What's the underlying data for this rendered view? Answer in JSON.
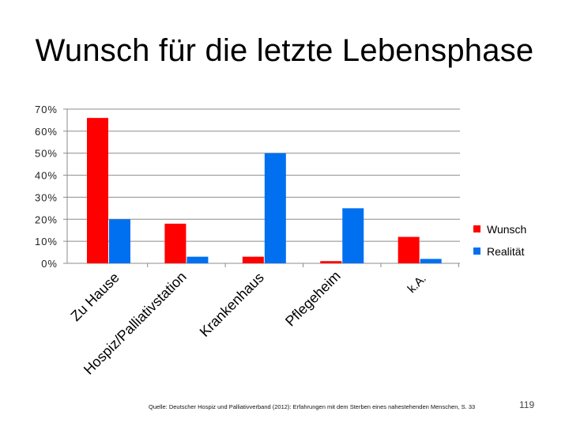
{
  "title": "Wunsch für die letzte Lebensphase",
  "source": "Quelle: Deutscher Hospiz und Palliativverband (2012): Erfahrungen mit dem Sterben eines nahestehenden Menschen, S. 33",
  "page_number": "119",
  "chart_data": {
    "type": "bar",
    "title": "Wunsch für die letzte Lebensphase",
    "xlabel": "",
    "ylabel": "",
    "ylim": [
      0,
      70
    ],
    "yticks": [
      "0%",
      "10%",
      "20%",
      "30%",
      "40%",
      "50%",
      "60%",
      "70%"
    ],
    "ytick_values": [
      0,
      10,
      20,
      30,
      40,
      50,
      60,
      70
    ],
    "grid": true,
    "legend_position": "right",
    "categories": [
      "Zu Hause",
      "Hospiz/Palliativstation",
      "Krankenhaus",
      "Pflegeheim",
      "k.A."
    ],
    "series": [
      {
        "name": "Wunsch",
        "color": "#ff0000",
        "values": [
          66,
          18,
          3,
          1,
          12
        ]
      },
      {
        "name": "Realität",
        "color": "#0070f0",
        "values": [
          20,
          3,
          50,
          25,
          2
        ]
      }
    ]
  }
}
